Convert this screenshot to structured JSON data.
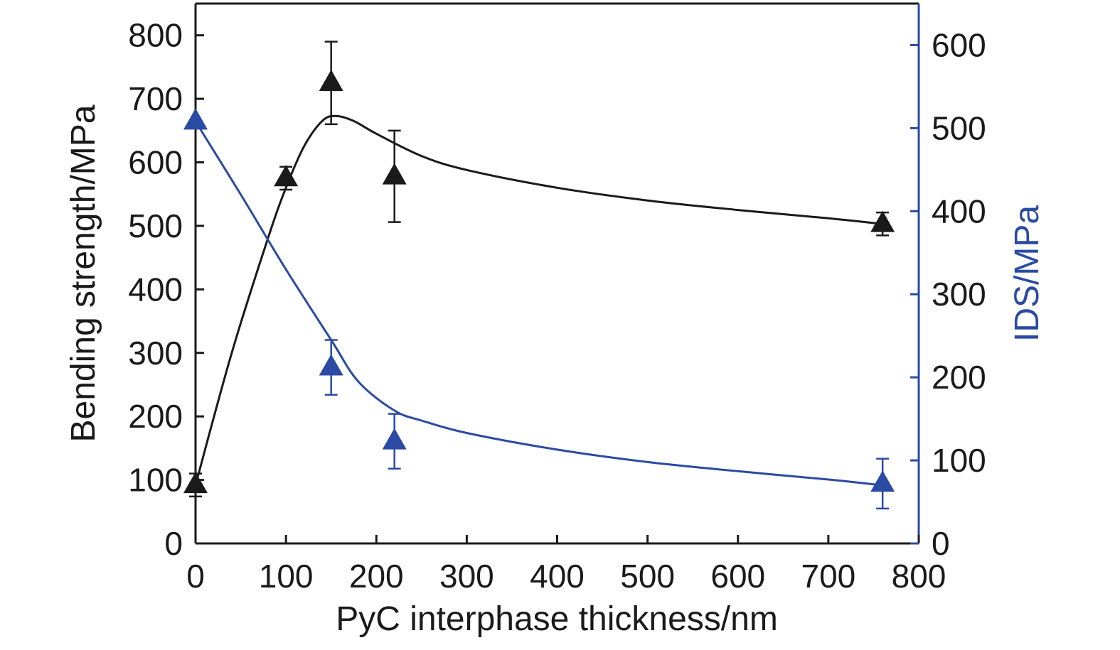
{
  "colors": {
    "left_series": "#1a1a1a",
    "right_series": "#2b4aa3",
    "axis": "#1a1a1a",
    "right_axis": "#2b4aa3"
  },
  "chart_data": {
    "type": "scatter",
    "title": "",
    "xlabel": "PyC interphase thickness/nm",
    "ylabel_left": "Bending strength/MPa",
    "ylabel_right": "IDS/MPa",
    "xlim": [
      0,
      800
    ],
    "ylim_left": [
      0,
      850
    ],
    "ylim_right": [
      0,
      650
    ],
    "x_ticks": [
      "0",
      "100",
      "200",
      "300",
      "400",
      "500",
      "600",
      "700",
      "800"
    ],
    "y_left_ticks": [
      "0",
      "100",
      "200",
      "300",
      "400",
      "500",
      "600",
      "700",
      "800"
    ],
    "y_right_ticks": [
      "0",
      "100",
      "200",
      "300",
      "400",
      "500",
      "600"
    ],
    "grid": false,
    "legend": "none",
    "series": [
      {
        "axis": "left",
        "marker": "triangle",
        "x": [
          0,
          100,
          150,
          220,
          760
        ],
        "y": [
          92,
          575,
          725,
          578,
          503
        ],
        "err": [
          18,
          18,
          65,
          72,
          18
        ],
        "fit_curve": {
          "x": [
            0,
            40,
            80,
            100,
            120,
            140,
            155,
            175,
            200,
            250,
            300,
            400,
            500,
            600,
            700,
            760
          ],
          "y": [
            92,
            300,
            480,
            560,
            625,
            665,
            673,
            665,
            645,
            610,
            588,
            560,
            540,
            525,
            512,
            503
          ]
        }
      },
      {
        "axis": "right",
        "marker": "triangle",
        "x": [
          0,
          150,
          220,
          760
        ],
        "y": [
          508,
          212,
          123,
          72
        ],
        "err": [
          0,
          33,
          33,
          30
        ],
        "fit_curve": {
          "x": [
            0,
            50,
            100,
            150,
            180,
            220,
            250,
            300,
            400,
            500,
            600,
            700,
            760
          ],
          "y": [
            508,
            420,
            330,
            245,
            195,
            160,
            148,
            133,
            113,
            98,
            87,
            77,
            70
          ]
        }
      }
    ]
  }
}
